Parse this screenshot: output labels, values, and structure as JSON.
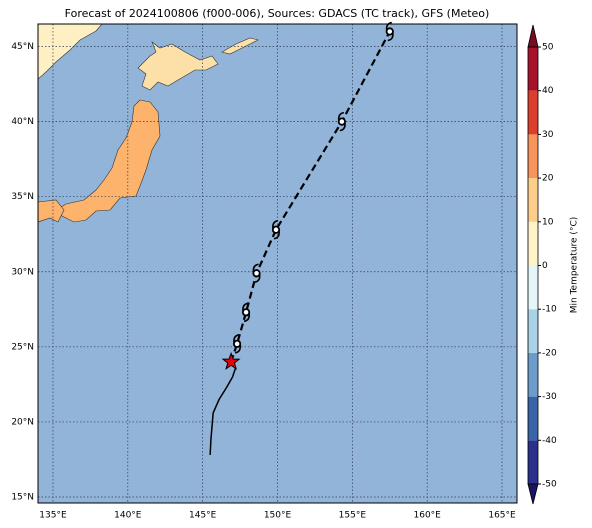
{
  "title": "Forecast of 2024100806 (f000-006), Sources: GDACS (TC track), GFS (Meteo)",
  "map": {
    "xlim": [
      134,
      166
    ],
    "ylim": [
      14.6,
      46.5
    ],
    "xticks": [
      {
        "value": 135,
        "label": "135°E"
      },
      {
        "value": 140,
        "label": "140°E"
      },
      {
        "value": 145,
        "label": "145°E"
      },
      {
        "value": 150,
        "label": "150°E"
      },
      {
        "value": 155,
        "label": "155°E"
      },
      {
        "value": 160,
        "label": "160°E"
      },
      {
        "value": 165,
        "label": "165°E"
      }
    ],
    "yticks": [
      {
        "value": 15,
        "label": "15°N"
      },
      {
        "value": 20,
        "label": "20°N"
      },
      {
        "value": 25,
        "label": "25°N"
      },
      {
        "value": 30,
        "label": "30°N"
      },
      {
        "value": 35,
        "label": "35°N"
      },
      {
        "value": 40,
        "label": "40°N"
      },
      {
        "value": 45,
        "label": "45°N"
      }
    ],
    "ocean_color": "#92b4d8"
  },
  "track": {
    "past": {
      "lon": [
        145.5,
        145.55,
        145.7,
        146.1,
        146.6,
        147.0,
        147.2,
        146.9
      ],
      "lat": [
        17.8,
        18.8,
        20.6,
        21.5,
        22.3,
        23.0,
        23.6,
        24.0
      ]
    },
    "current": {
      "lon": 146.9,
      "lat": 24.0,
      "color": "#e8000b"
    },
    "forecast": {
      "lon": [
        147.3,
        147.9,
        148.6,
        149.9,
        154.3,
        157.5
      ],
      "lat": [
        25.2,
        27.3,
        29.9,
        32.8,
        40.0,
        46.0
      ]
    }
  },
  "colorbar": {
    "label": "Min Temperature (°C)",
    "ticks": [
      -50,
      -40,
      -30,
      -20,
      -10,
      0,
      10,
      20,
      30,
      40,
      50
    ],
    "colors": [
      "#2c2f8d",
      "#3a64a8",
      "#6b9ccb",
      "#a9d2e6",
      "#e6f5f8",
      "#fff3c8",
      "#fdce8a",
      "#f7945a",
      "#dd3d2c",
      "#a8112a"
    ],
    "under": "#1b1462",
    "over": "#7a0a1f"
  }
}
